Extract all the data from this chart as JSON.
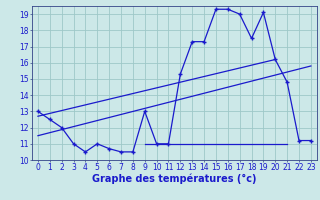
{
  "title": "Graphe des températures (°c)",
  "bg_color": "#cce8e8",
  "grid_color": "#9ec8c8",
  "line_color": "#1a1acc",
  "xlim": [
    -0.5,
    23.5
  ],
  "ylim": [
    10,
    19.5
  ],
  "xticks": [
    0,
    1,
    2,
    3,
    4,
    5,
    6,
    7,
    8,
    9,
    10,
    11,
    12,
    13,
    14,
    15,
    16,
    17,
    18,
    19,
    20,
    21,
    22,
    23
  ],
  "yticks": [
    10,
    11,
    12,
    13,
    14,
    15,
    16,
    17,
    18,
    19
  ],
  "temp_line": {
    "x": [
      0,
      1,
      2,
      3,
      4,
      5,
      6,
      7,
      8,
      9,
      10,
      11,
      12,
      13,
      14,
      15,
      16,
      17,
      18,
      19,
      20,
      21,
      22,
      23
    ],
    "y": [
      13.0,
      12.5,
      12.0,
      11.0,
      10.5,
      11.0,
      10.7,
      10.5,
      10.5,
      13.0,
      11.0,
      11.0,
      15.3,
      17.3,
      17.3,
      19.3,
      19.3,
      19.0,
      17.5,
      19.1,
      16.2,
      14.8,
      11.2,
      11.2
    ]
  },
  "trend1": {
    "x": [
      0,
      20
    ],
    "y": [
      12.7,
      16.2
    ]
  },
  "trend2": {
    "x": [
      0,
      23
    ],
    "y": [
      11.5,
      15.8
    ]
  },
  "min_line": {
    "x": [
      9,
      21
    ],
    "y": [
      11.0,
      11.0
    ]
  },
  "xlabel_fontsize": 7.0,
  "tick_fontsize": 5.5
}
